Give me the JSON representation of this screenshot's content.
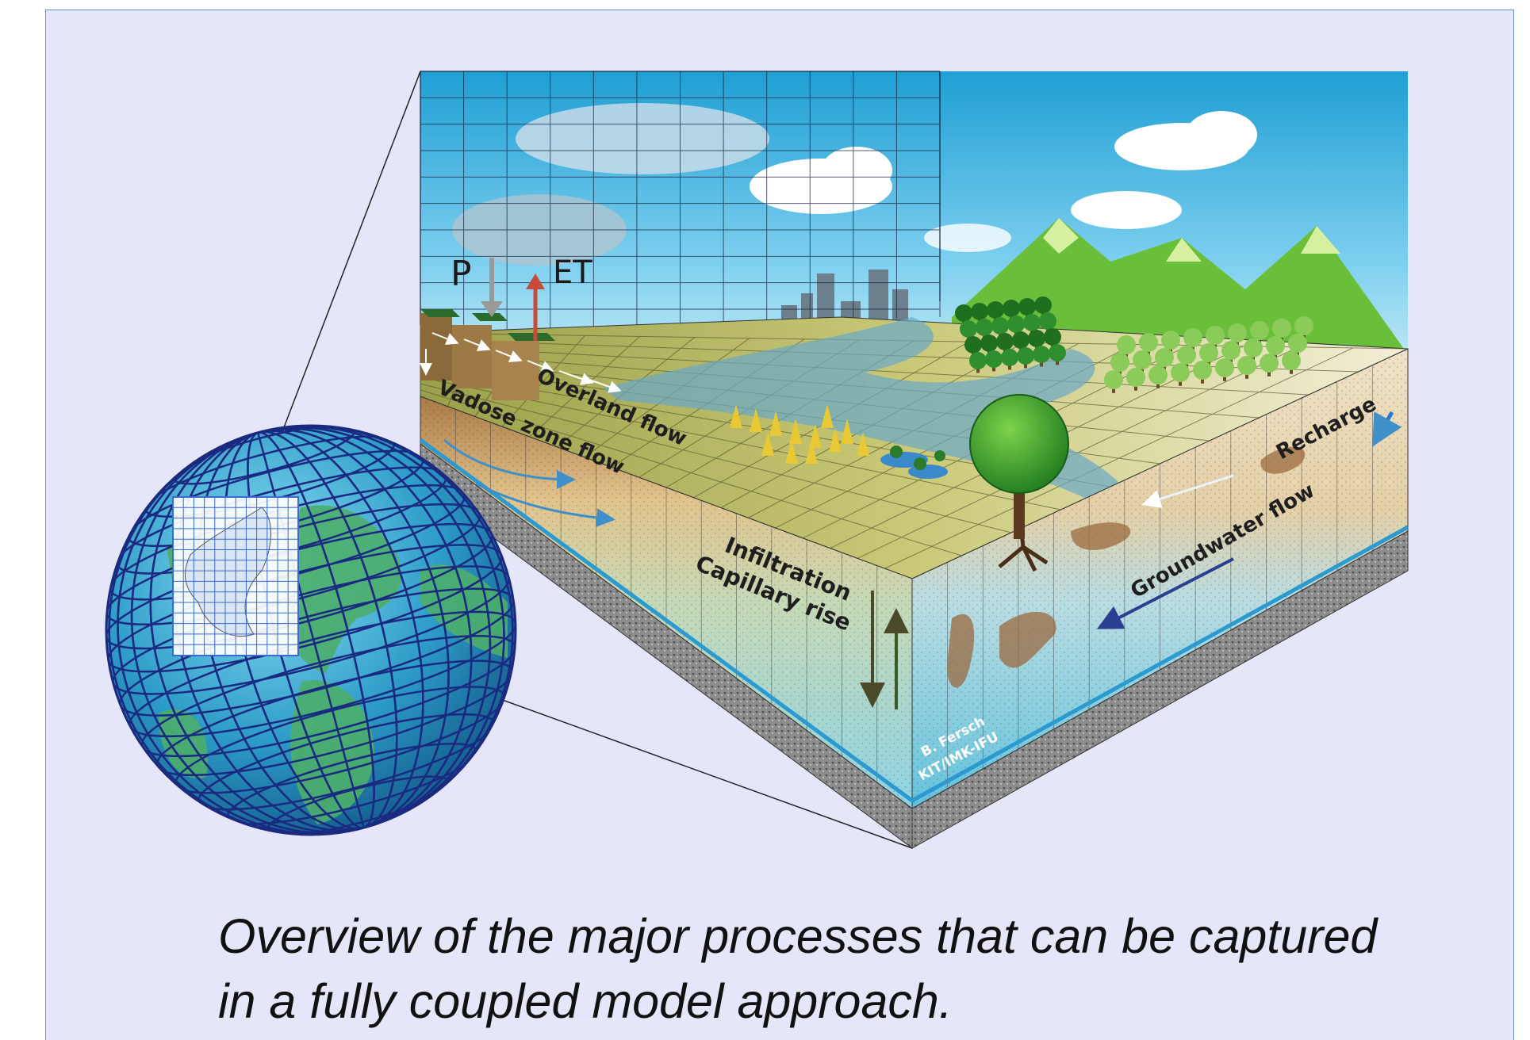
{
  "labels": {
    "precipitation": "P",
    "evapotranspiration": "ET",
    "overland_flow": "Overland flow",
    "vadose_zone_flow": "Vadose zone flow",
    "infiltration": "Infiltration",
    "capillary_rise": "Capillary rise",
    "recharge": "Recharge",
    "groundwater_flow": "Groundwater flow"
  },
  "credit": {
    "line1": "B. Fersch",
    "line2": "KIT/IMK-IFU"
  },
  "caption": {
    "line1": "Overview of the major processes that can be captured",
    "line2": "in a fully coupled model approach."
  },
  "colors": {
    "panel_background": "#e6e6fb",
    "panel_border": "#6b8fd6",
    "sky": "#2aa8d8",
    "globe_ocean": "#2b9ac4",
    "globe_land": "#4cae6a",
    "globe_grid": "#1a2a80",
    "soil": "#d6b98a",
    "groundwater": "#7fcfe0",
    "ground_surface": "#c8c67a"
  }
}
